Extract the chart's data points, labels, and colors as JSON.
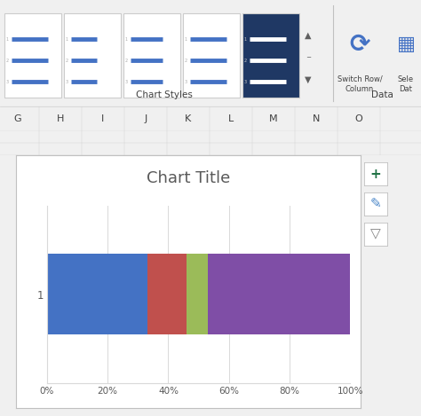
{
  "title": "Chart Title",
  "title_fontsize": 13,
  "title_color": "#595959",
  "y_label": "1",
  "segments": [
    0.33,
    0.13,
    0.07,
    0.47
  ],
  "colors": [
    "#4472C4",
    "#C0504D",
    "#9BBB59",
    "#7F4EA6"
  ],
  "x_ticks": [
    0.0,
    0.2,
    0.4,
    0.6,
    0.8,
    1.0
  ],
  "x_tick_labels": [
    "0%",
    "20%",
    "40%",
    "60%",
    "80%",
    "100%"
  ],
  "chart_bg_color": "#FFFFFF",
  "outer_bg_color": "#F0F0F0",
  "grid_color": "#D9D9D9",
  "border_color": "#C0C0C0",
  "bar_height": 0.55,
  "figsize": [
    4.74,
    4.69
  ],
  "dpi": 100,
  "spreadsheet_bg": "#FFFFFF",
  "col_headers": [
    "G",
    "H",
    "I",
    "J",
    "K",
    "L",
    "M",
    "N",
    "O"
  ],
  "ribbon_bg": "#F0F0F0",
  "ribbon_top_bg": "#F2F2F2",
  "thumb_line_color": "#4472C4",
  "thumb_dark_bg": "#1F3864",
  "thumb_border": "#CCCCCC",
  "separator_color": "#C0C0C0",
  "text_color": "#404040",
  "sheet_line_color": "#D0D0D0",
  "icon_green": "#217346",
  "icon_blue": "#4A86C8",
  "icon_gray": "#808080"
}
